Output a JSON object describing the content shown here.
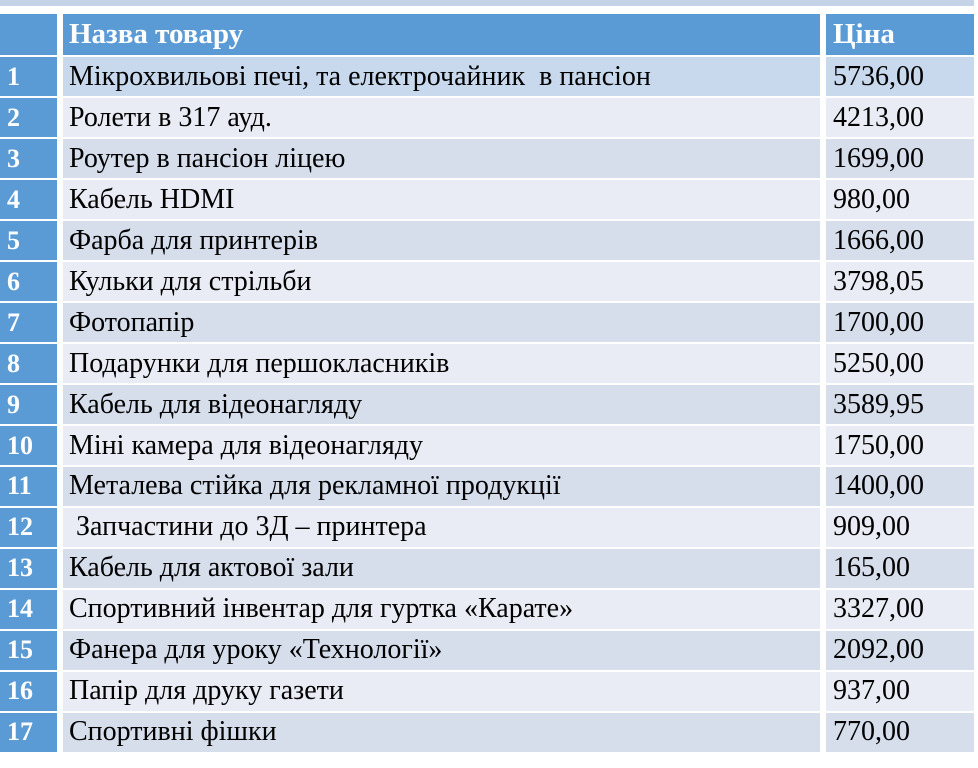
{
  "colors": {
    "header_blue": "#5B9BD5",
    "row_first_band": "#C8D9EE",
    "row_band_dark": "#D6DEEC",
    "row_band_light": "#E9ECF4",
    "top_strip": "#C5D3E6",
    "body_text": "#000000",
    "header_text": "#FFFFFF"
  },
  "chart_data": {
    "type": "table",
    "title": "",
    "columns": {
      "index": "",
      "name": "Назва товару",
      "price": "Ціна"
    },
    "rows": [
      {
        "index": "1",
        "name": "Мікрохвильові печі, та електрочайник  в пансіон",
        "price": "5736,00"
      },
      {
        "index": "2",
        "name": "Ролети в 317 ауд.",
        "price": "4213,00"
      },
      {
        "index": "3",
        "name": "Роутер в пансіон ліцею",
        "price": "1699,00"
      },
      {
        "index": "4",
        "name": "Кабель HDMI",
        "price": "980,00"
      },
      {
        "index": "5",
        "name": "Фарба для принтерів",
        "price": "1666,00"
      },
      {
        "index": "6",
        "name": "Кульки для стрільби",
        "price": "3798,05"
      },
      {
        "index": "7",
        "name": "Фотопапір",
        "price": "1700,00"
      },
      {
        "index": "8",
        "name": "Подарунки для першокласників",
        "price": "5250,00"
      },
      {
        "index": "9",
        "name": "Кабель для відеонагляду",
        "price": "3589,95"
      },
      {
        "index": "10",
        "name": "Міні камера для відеонагляду",
        "price": "1750,00"
      },
      {
        "index": "11",
        "name": "Металева стійка для рекламної продукції",
        "price": "1400,00"
      },
      {
        "index": "12",
        "name": " Запчастини до 3Д – принтера",
        "price": "909,00"
      },
      {
        "index": "13",
        "name": "Кабель для актової зали",
        "price": "165,00"
      },
      {
        "index": "14",
        "name": "Спортивний інвентар для гуртка «Карате»",
        "price": "3327,00"
      },
      {
        "index": "15",
        "name": "Фанера для уроку «Технології»",
        "price": "2092,00"
      },
      {
        "index": "16",
        "name": "Папір для друку газети",
        "price": "937,00"
      },
      {
        "index": "17",
        "name": "Спортивні фішки",
        "price": "770,00"
      }
    ]
  }
}
